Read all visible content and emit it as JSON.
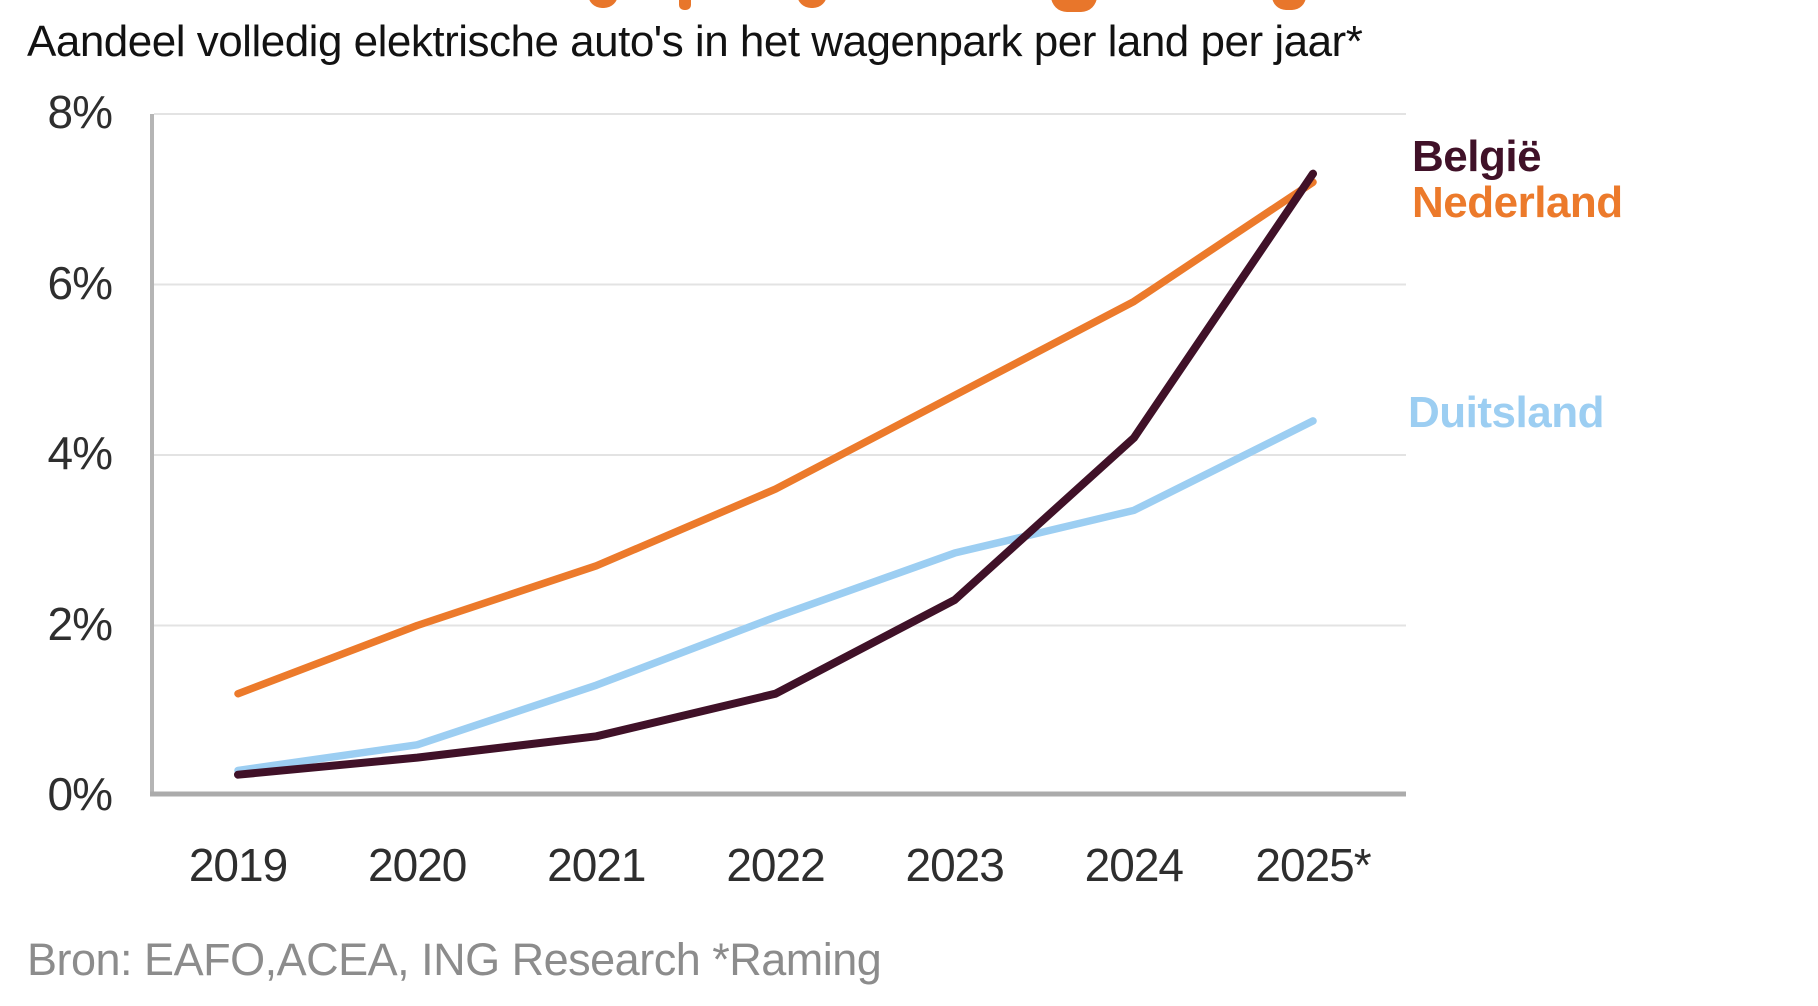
{
  "header": {
    "subtitle": "Aandeel volledig elektrische auto's in het wagenpark per land per jaar*"
  },
  "footer": {
    "source": "Bron: EAFO,ACEA, ING Research *Raming"
  },
  "palette": {
    "clipped_title_orange": "#E8762B",
    "subtitle_text": "#121212",
    "tick_text": "#2E2E2E",
    "source_text": "#8C8C8C",
    "gridline": "#E3E3E3",
    "y_axis_line": "#B5B5B5",
    "x_axis_line": "#ABABAB"
  },
  "chart_data": {
    "type": "line",
    "title": "Aandeel volledig elektrische auto's in het wagenpark per land per jaar*",
    "xlabel": "",
    "ylabel": "",
    "categories": [
      "2019",
      "2020",
      "2021",
      "2022",
      "2023",
      "2024",
      "2025*"
    ],
    "series": [
      {
        "name": "Nederland",
        "color": "#EC7A2B",
        "values": [
          1.2,
          2.0,
          2.7,
          3.6,
          4.7,
          5.8,
          7.2
        ]
      },
      {
        "name": "Duitsland",
        "color": "#9CCEF2",
        "values": [
          0.3,
          0.6,
          1.3,
          2.1,
          2.85,
          3.35,
          4.4
        ]
      },
      {
        "name": "België",
        "color": "#401128",
        "values": [
          0.25,
          0.45,
          0.7,
          1.2,
          2.3,
          4.2,
          7.3
        ]
      }
    ],
    "ylim": [
      0,
      8
    ],
    "y_ticks": [
      0,
      2,
      4,
      6,
      8
    ],
    "y_tick_labels": [
      "0%",
      "2%",
      "4%",
      "6%",
      "8%"
    ],
    "grid": true,
    "legend_position": "right",
    "legend_order": [
      "België",
      "Nederland",
      "Duitsland"
    ],
    "source_note": "Bron: EAFO,ACEA, ING Research *Raming"
  }
}
